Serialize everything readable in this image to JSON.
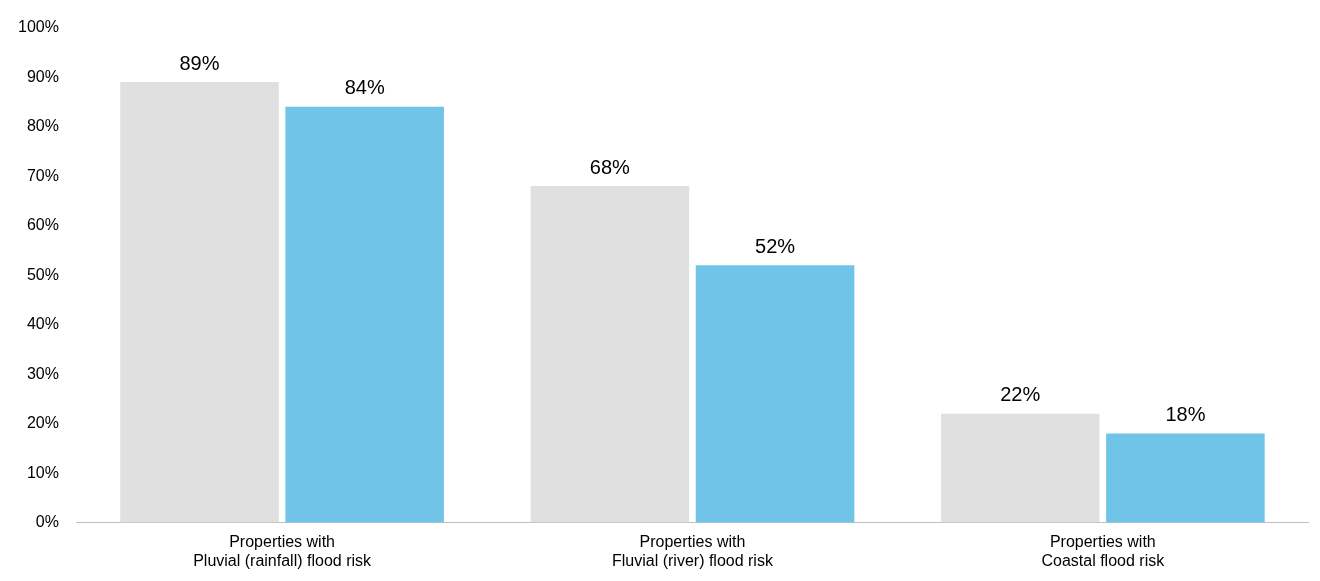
{
  "chart_data": {
    "type": "bar",
    "categories": [
      "Properties with\nPluvial (rainfall) flood risk",
      "Properties with\nFluvial (river) flood risk",
      "Properties with\nCoastal flood risk"
    ],
    "series": [
      {
        "color": "#e0e0e0",
        "values": [
          89,
          68,
          22
        ],
        "value_labels": [
          "89%",
          "68%",
          "22%"
        ]
      },
      {
        "color": "#70c4e8",
        "values": [
          84,
          52,
          18
        ],
        "value_labels": [
          "84%",
          "52%",
          "18%"
        ]
      }
    ],
    "ylim": [
      0,
      100
    ],
    "yticks": [
      {
        "value": 0,
        "label": "0%"
      },
      {
        "value": 10,
        "label": "10%"
      },
      {
        "value": 20,
        "label": "20%"
      },
      {
        "value": 30,
        "label": "30%"
      },
      {
        "value": 40,
        "label": "40%"
      },
      {
        "value": 50,
        "label": "50%"
      },
      {
        "value": 60,
        "label": "60%"
      },
      {
        "value": 70,
        "label": "70%"
      },
      {
        "value": 80,
        "label": "80%"
      },
      {
        "value": 90,
        "label": "90%"
      },
      {
        "value": 100,
        "label": "100%"
      }
    ],
    "grid": false,
    "legend": false
  }
}
